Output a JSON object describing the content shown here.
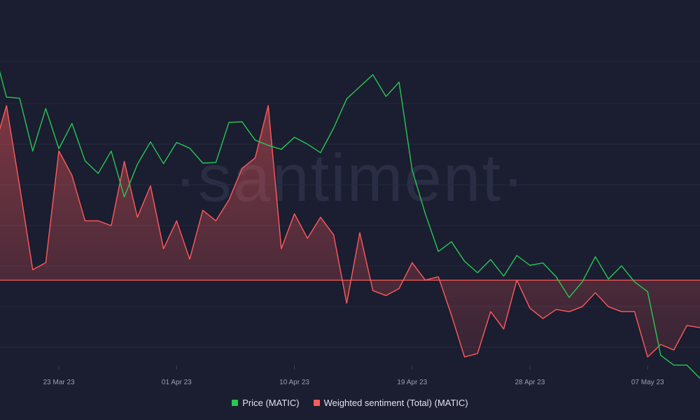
{
  "watermark": "·santiment·",
  "colors": {
    "background": "#1b1d30",
    "price": "#26c953",
    "sentiment": "#ff5b5b",
    "sentiment_fill": "#5a2a33",
    "grid": "#262a40",
    "axis_text": "#9a9fb5"
  },
  "chart_data": {
    "type": "line",
    "x_ticks": [
      {
        "label": "23 Mar 23",
        "index": 6
      },
      {
        "label": "01 Apr 23",
        "index": 15
      },
      {
        "label": "10 Apr 23",
        "index": 24
      },
      {
        "label": "19 Apr 23",
        "index": 33
      },
      {
        "label": "28 Apr 23",
        "index": 42
      },
      {
        "label": "07 May 23",
        "index": 51
      }
    ],
    "x_index_range": [
      1.5,
      55
    ],
    "series": [
      {
        "name": "Price (MATIC)",
        "axis": "left",
        "ylim": [
          0.9,
          1.5
        ],
        "values": [
          1.45,
          1.365,
          1.363,
          1.271,
          1.345,
          1.275,
          1.319,
          1.254,
          1.232,
          1.271,
          1.191,
          1.248,
          1.287,
          1.249,
          1.286,
          1.276,
          1.25,
          1.251,
          1.321,
          1.322,
          1.29,
          1.281,
          1.274,
          1.295,
          1.283,
          1.268,
          1.311,
          1.362,
          1.383,
          1.404,
          1.366,
          1.391,
          1.238,
          1.162,
          1.096,
          1.113,
          1.079,
          1.059,
          1.082,
          1.053,
          1.089,
          1.072,
          1.076,
          1.052,
          1.016,
          1.043,
          1.087,
          1.048,
          1.071,
          1.043,
          1.026,
          0.915,
          0.898,
          0.898,
          0.875
        ]
      },
      {
        "name": "Weighted sentiment (Total) (MATIC)",
        "axis": "right",
        "baseline": 0,
        "ylim": [
          -1.2,
          3.73
        ],
        "values": [
          1.85,
          2.5,
          1.35,
          0.15,
          0.25,
          1.85,
          1.5,
          0.85,
          0.85,
          0.78,
          1.7,
          0.9,
          1.35,
          0.45,
          0.85,
          0.3,
          1.0,
          0.85,
          1.15,
          1.6,
          1.75,
          2.5,
          0.45,
          0.95,
          0.6,
          0.9,
          0.65,
          -0.33,
          0.68,
          -0.15,
          -0.22,
          -0.12,
          0.25,
          0.0,
          0.05,
          -0.5,
          -1.1,
          -1.05,
          -0.45,
          -0.7,
          0.0,
          -0.4,
          -0.55,
          -0.42,
          -0.45,
          -0.38,
          -0.18,
          -0.38,
          -0.45,
          -0.45,
          -1.1,
          -0.92,
          -1.0,
          -0.65,
          -0.68,
          -0.85
        ]
      }
    ]
  },
  "legend": {
    "items": [
      {
        "label": "Price (MATIC)",
        "color": "#26c953"
      },
      {
        "label": "Weighted sentiment (Total) (MATIC)",
        "color": "#ff5b5b"
      }
    ]
  }
}
